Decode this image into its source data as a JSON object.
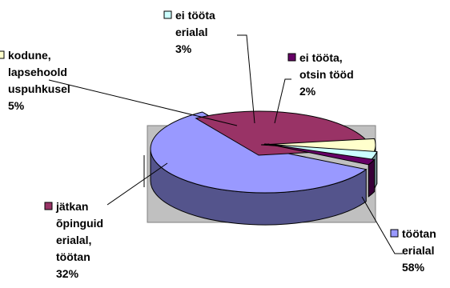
{
  "chart_data": {
    "type": "pie",
    "title": "",
    "style": "3d-exploded",
    "legend": "inline-labels",
    "slices": [
      {
        "label": [
          "töötan",
          "erialal",
          "58%"
        ],
        "value": 58,
        "color": "#9999ff"
      },
      {
        "label": [
          "jätkan",
          "õpinguid",
          "erialal,",
          "töötan",
          "32%"
        ],
        "value": 32,
        "color": "#993366"
      },
      {
        "label": [
          "kodune,",
          "lapsehoold",
          "uspuhkusel",
          "5%"
        ],
        "value": 5,
        "color": "#ffffcc"
      },
      {
        "label": [
          "ei tööta",
          "erialal",
          "3%"
        ],
        "value": 3,
        "color": "#ccffff"
      },
      {
        "label": [
          "ei tööta,",
          "otsin tööd",
          "2%"
        ],
        "value": 2,
        "color": "#660066"
      }
    ],
    "background_color": "#c0c0c0"
  }
}
